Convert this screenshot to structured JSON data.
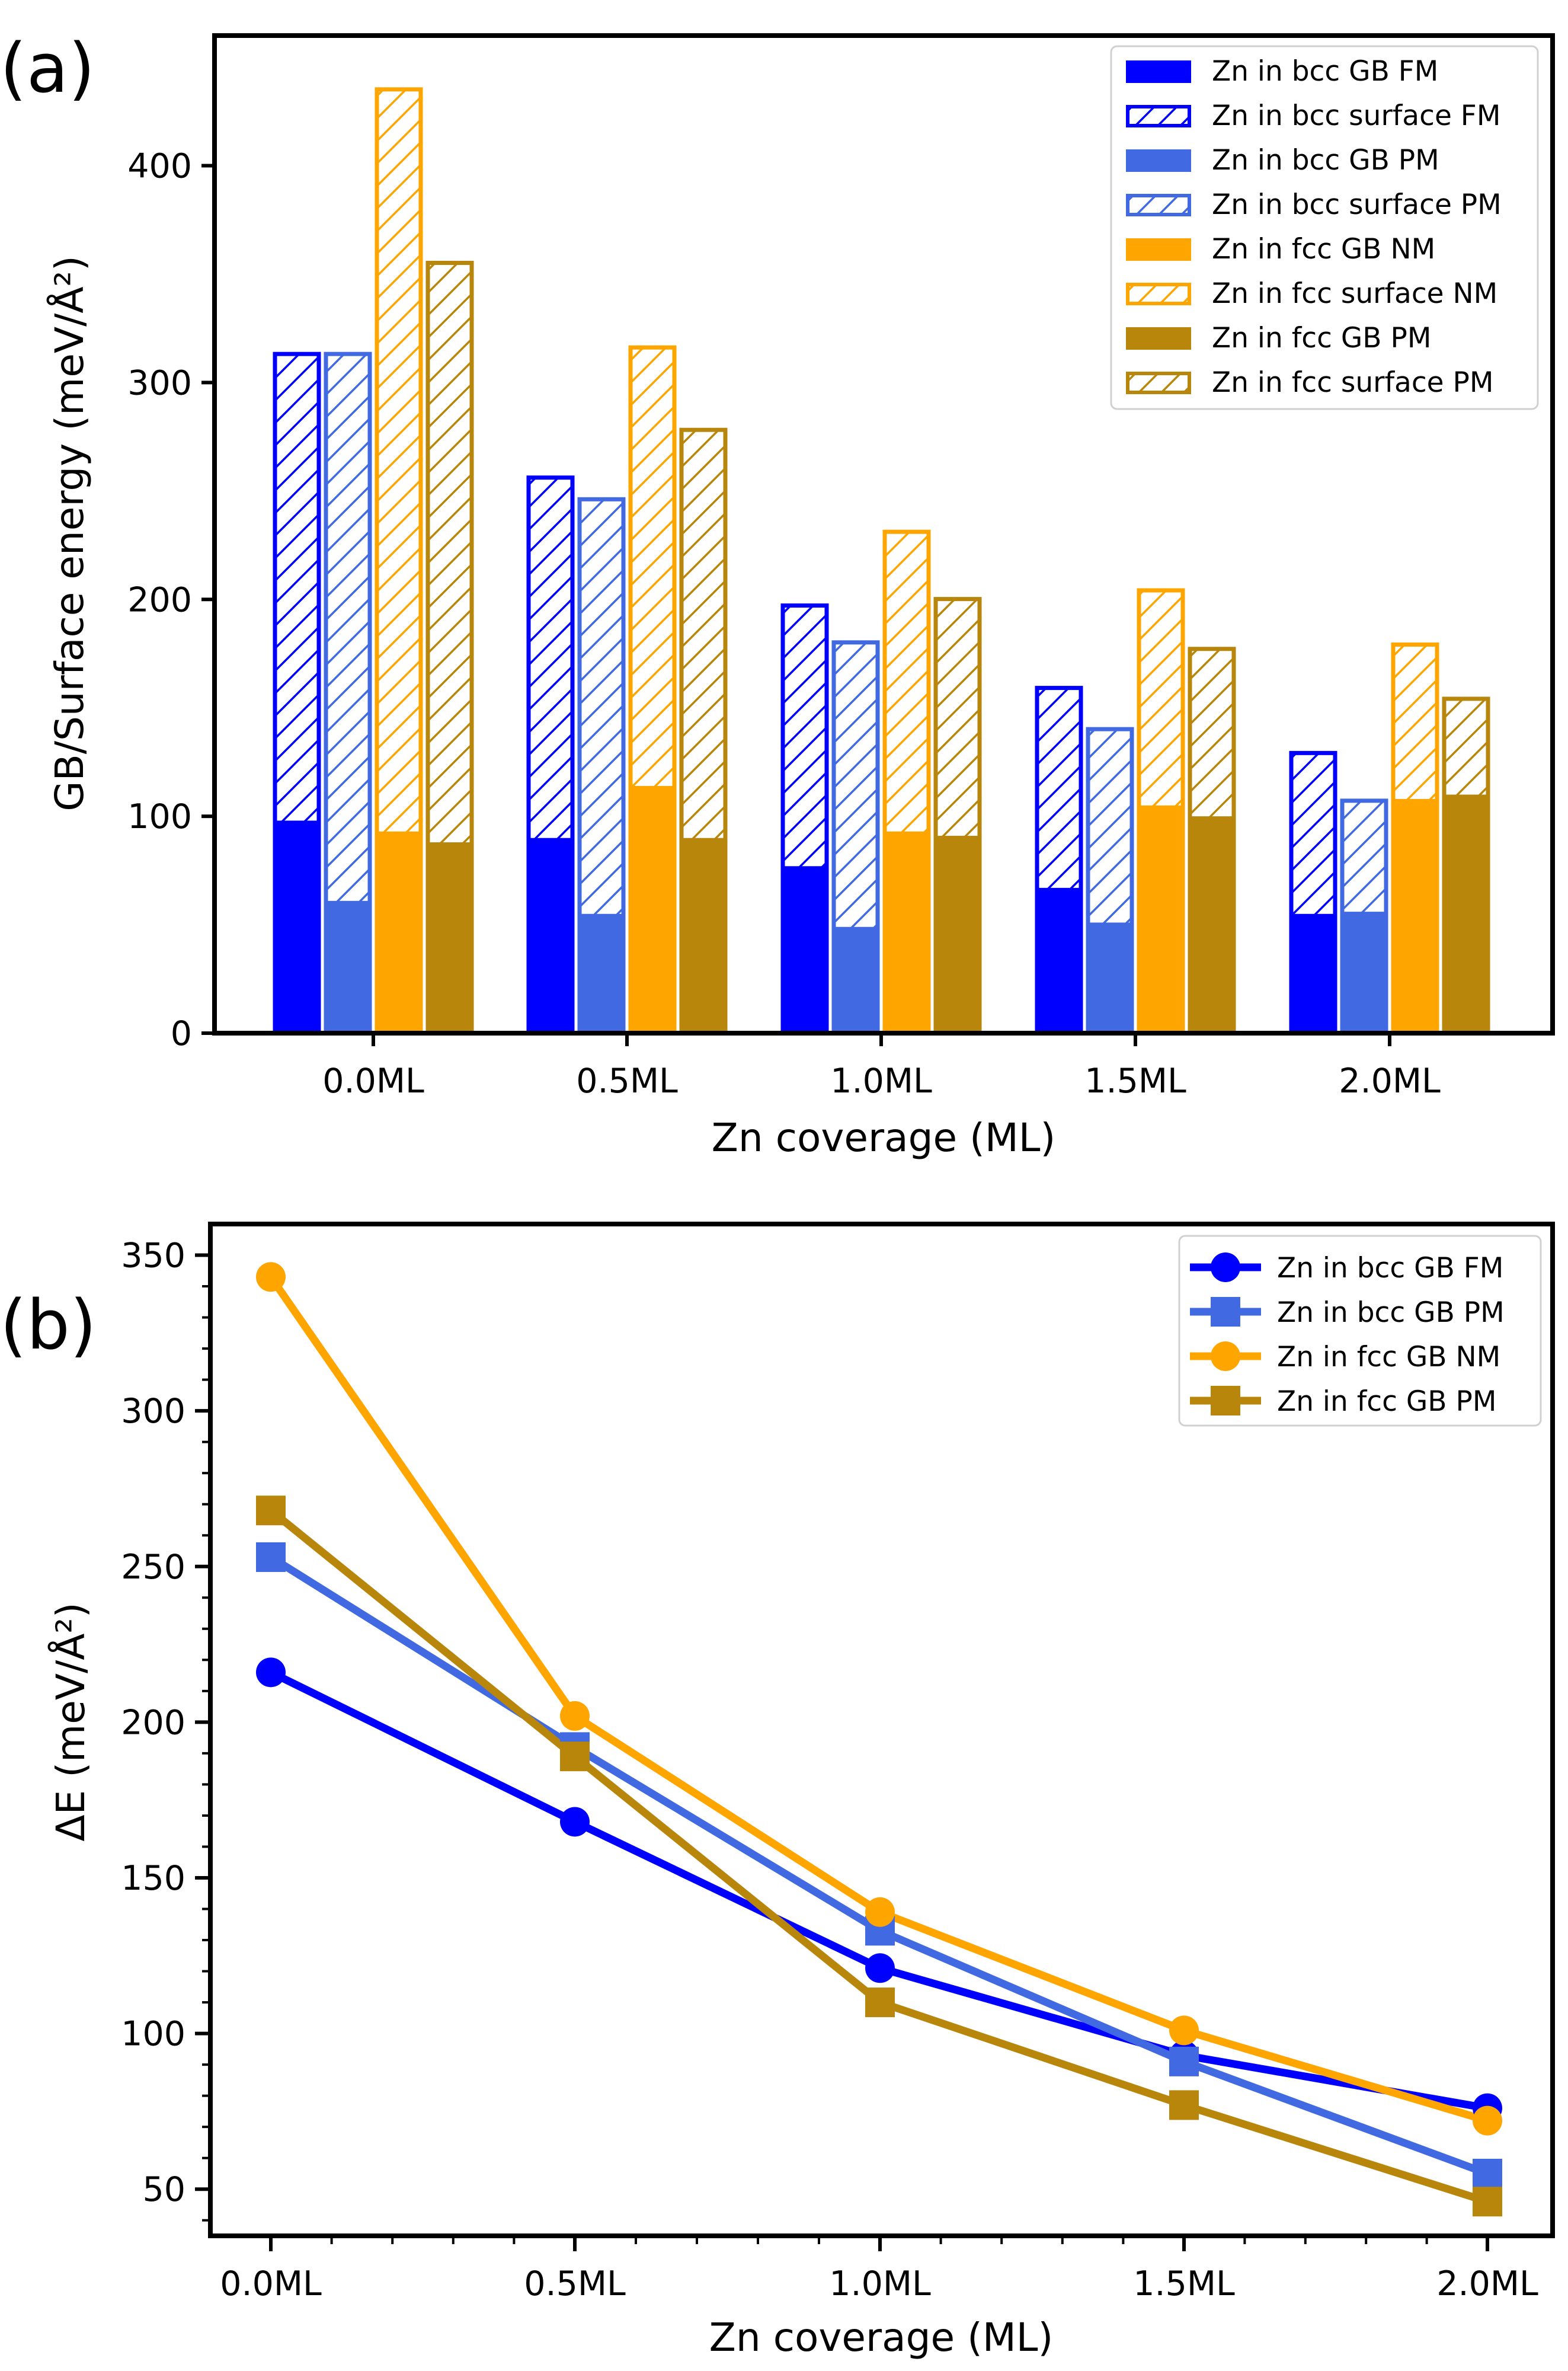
{
  "chart_data": [
    {
      "panel": "(a)",
      "type": "bar",
      "title": "",
      "xlabel": "Zn coverage (ML)",
      "ylabel": "GB/Surface energy (meV/Å²)",
      "ylim": [
        0,
        460
      ],
      "yticks": [
        "0",
        "100",
        "200",
        "300",
        "400"
      ],
      "categories": [
        "0.0ML",
        "0.5ML",
        "1.0ML",
        "1.5ML",
        "2.0ML"
      ],
      "legend_position": "top-right",
      "series": [
        {
          "name": "Zn in bcc GB FM",
          "color": "#0000ff",
          "gb": [
            98,
            90,
            77,
            67,
            55
          ],
          "surface": [
            314,
            257,
            198,
            160,
            130
          ],
          "surface_label": "Zn in bcc surface FM"
        },
        {
          "name": "Zn in bcc GB PM",
          "color": "#4169e1",
          "gb": [
            61,
            55,
            49,
            51,
            56
          ],
          "surface": [
            314,
            247,
            181,
            141,
            108
          ],
          "surface_label": "Zn in bcc surface PM"
        },
        {
          "name": "Zn in fcc GB NM",
          "color": "#ffa500",
          "gb": [
            93,
            114,
            93,
            105,
            108
          ],
          "surface": [
            436,
            317,
            232,
            205,
            180
          ],
          "surface_label": "Zn in fcc surface NM"
        },
        {
          "name": "Zn in fcc GB PM",
          "color": "#b8860b",
          "gb": [
            88,
            90,
            91,
            100,
            110
          ],
          "surface": [
            356,
            279,
            201,
            178,
            155
          ],
          "surface_label": "Zn in fcc surface PM"
        }
      ]
    },
    {
      "panel": "(b)",
      "type": "line",
      "title": "",
      "xlabel": "Zn coverage (ML)",
      "ylabel": "ΔE (meV/Å²)",
      "ylim": [
        35,
        360
      ],
      "yticks": [
        "50",
        "100",
        "150",
        "200",
        "250",
        "300",
        "350"
      ],
      "categories": [
        "0.0ML",
        "0.5ML",
        "1.0ML",
        "1.5ML",
        "2.0ML"
      ],
      "legend_position": "top-right",
      "series": [
        {
          "name": "Zn in bcc GB FM",
          "color": "#0000ff",
          "marker": "circle",
          "values": [
            216,
            168,
            121,
            93,
            76
          ]
        },
        {
          "name": "Zn in bcc GB PM",
          "color": "#4169e1",
          "marker": "square",
          "values": [
            253,
            192,
            133,
            91,
            55
          ]
        },
        {
          "name": "Zn in fcc GB NM",
          "color": "#ffa500",
          "marker": "circle",
          "values": [
            343,
            202,
            139,
            101,
            72
          ]
        },
        {
          "name": "Zn in fcc GB PM",
          "color": "#b8860b",
          "marker": "square",
          "values": [
            268,
            189,
            110,
            77,
            46
          ]
        }
      ]
    }
  ]
}
